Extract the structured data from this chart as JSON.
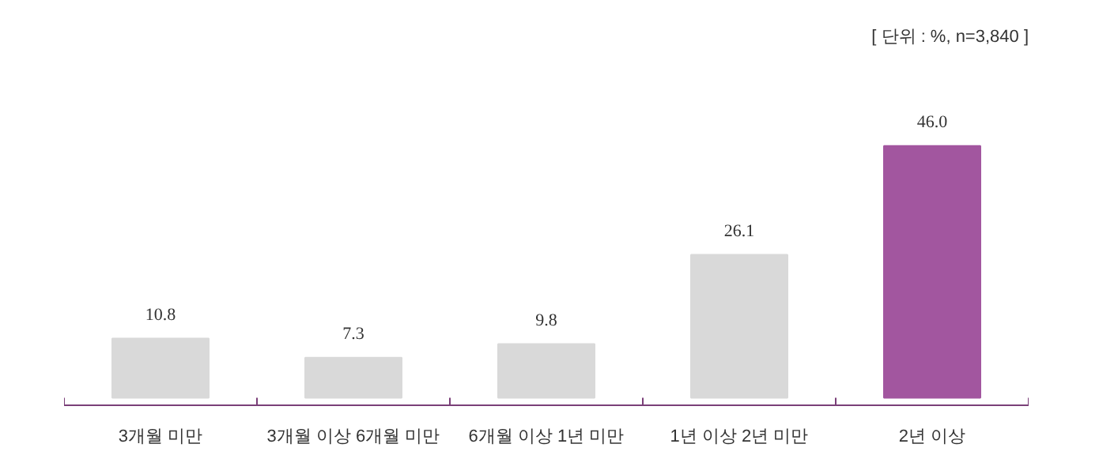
{
  "chart_data": {
    "type": "bar",
    "categories": [
      "3개월 미만",
      "3개월 이상 6개월 미만",
      "6개월 이상 1년 미만",
      "1년 이상 2년 미만",
      "2년 이상"
    ],
    "values": [
      10.8,
      7.3,
      9.8,
      26.1,
      46.0
    ],
    "colors": [
      "#d9d9d9",
      "#d9d9d9",
      "#d9d9d9",
      "#d9d9d9",
      "#a2569f"
    ],
    "value_labels": [
      "10.8",
      "7.3",
      "9.8",
      "26.1",
      "46.0"
    ],
    "annotations": [
      "[ 단위 : %, n=3,840 ]"
    ],
    "grid": false
  }
}
